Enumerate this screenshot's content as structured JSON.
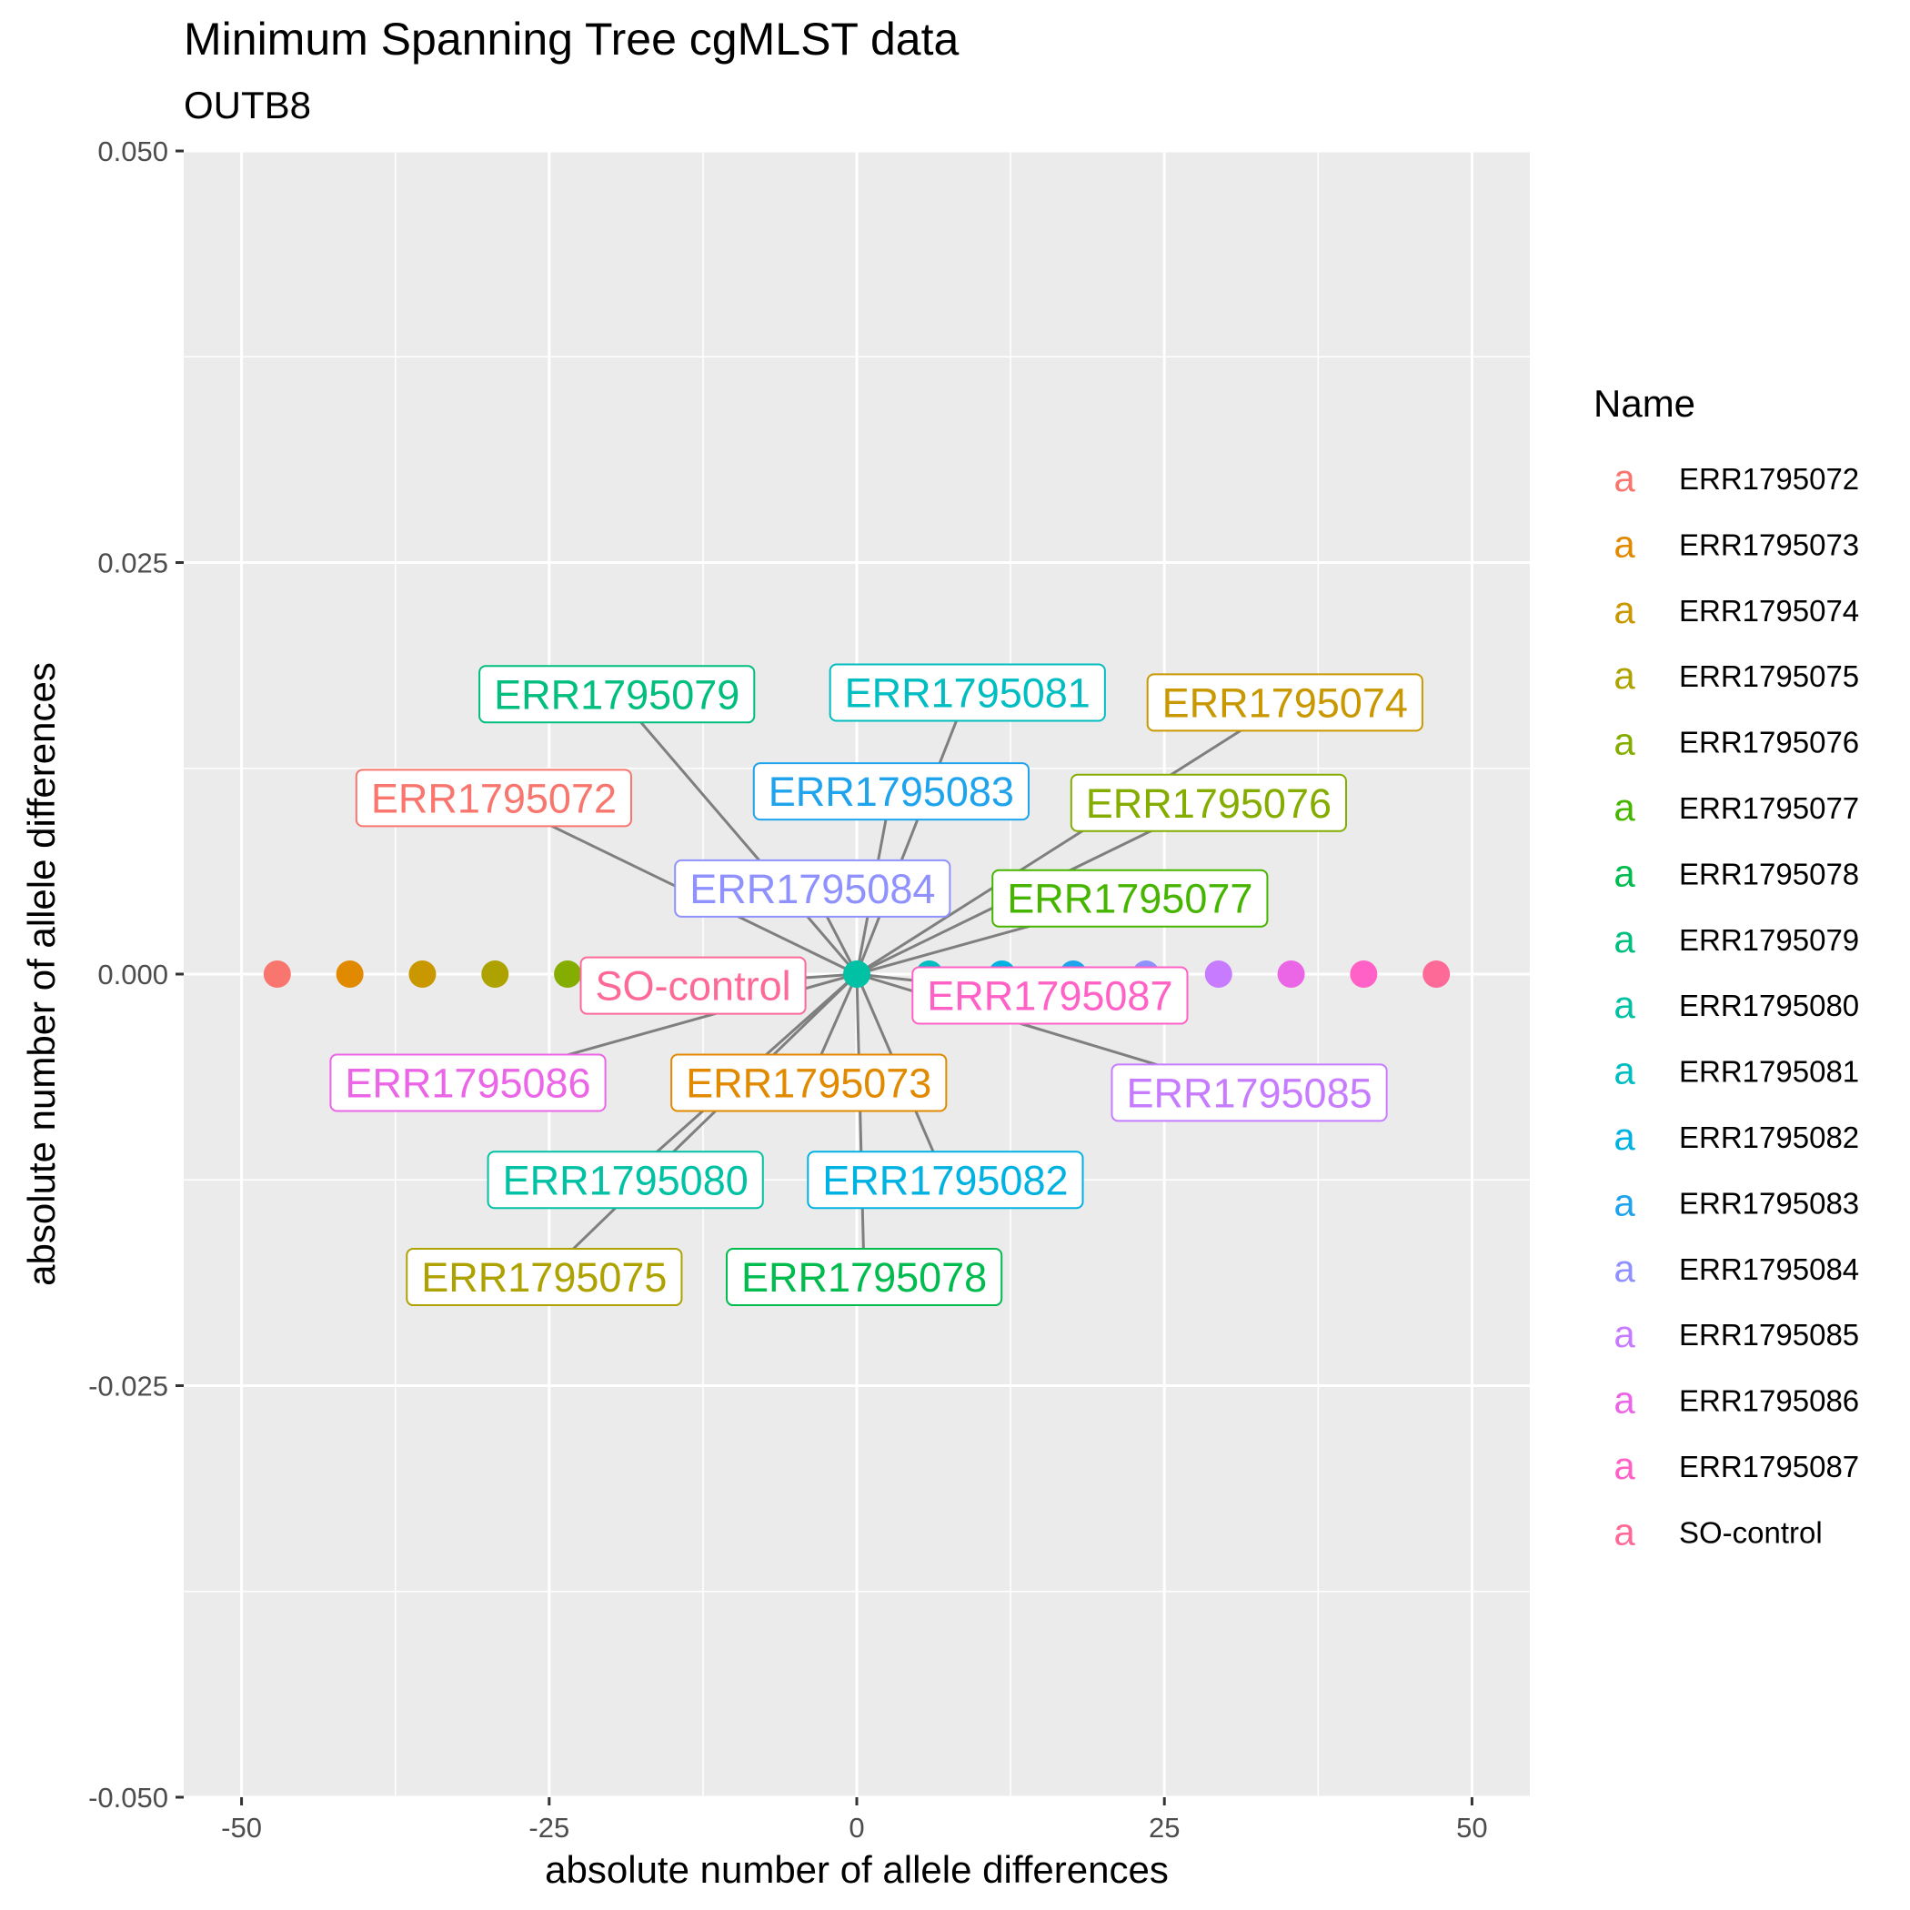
{
  "chart_data": {
    "type": "scatter",
    "title": "Minimum Spanning Tree cgMLST data",
    "subtitle": "OUTB8",
    "xlabel": "absolute number of allele differences",
    "ylabel": "absolute number of allele differences",
    "xlim": [
      -54.7,
      54.7
    ],
    "ylim": [
      -0.05,
      0.05
    ],
    "xticks": [
      -50,
      -25,
      0,
      25,
      50
    ],
    "xtick_labels": [
      "-50",
      "-25",
      "0",
      "25",
      "50"
    ],
    "yticks": [
      -0.05,
      -0.025,
      0.0,
      0.025,
      0.05
    ],
    "ytick_labels": [
      "-0.050",
      "-0.025",
      "0.000",
      "0.025",
      "0.050"
    ],
    "grid": true,
    "legend": {
      "title": "Name",
      "placement": "right",
      "key_glyph": "a"
    },
    "points": [
      {
        "name": "ERR1795072",
        "x": -47.1,
        "y": 0,
        "color": "#F8766D"
      },
      {
        "name": "ERR1795073",
        "x": -41.2,
        "y": 0,
        "color": "#E18A00"
      },
      {
        "name": "ERR1795074",
        "x": -35.3,
        "y": 0,
        "color": "#C99800"
      },
      {
        "name": "ERR1795075",
        "x": -29.4,
        "y": 0,
        "color": "#ADA200"
      },
      {
        "name": "ERR1795076",
        "x": -23.5,
        "y": 0,
        "color": "#85AD00"
      },
      {
        "name": "ERR1795077",
        "x": -17.6,
        "y": 0,
        "color": "#45B500"
      },
      {
        "name": "ERR1795078",
        "x": -11.8,
        "y": 0,
        "color": "#00BB4E"
      },
      {
        "name": "ERR1795079",
        "x": -5.9,
        "y": 0,
        "color": "#00BE7D"
      },
      {
        "name": "ERR1795080",
        "x": 0,
        "y": 0,
        "color": "#00C1A3"
      },
      {
        "name": "ERR1795081",
        "x": 5.9,
        "y": 0,
        "color": "#00BDC2"
      },
      {
        "name": "ERR1795082",
        "x": 11.8,
        "y": 0,
        "color": "#00B2E1"
      },
      {
        "name": "ERR1795083",
        "x": 17.6,
        "y": 0,
        "color": "#1FA3EC"
      },
      {
        "name": "ERR1795084",
        "x": 23.5,
        "y": 0,
        "color": "#8F91FF"
      },
      {
        "name": "ERR1795085",
        "x": 29.4,
        "y": 0,
        "color": "#C77CFF"
      },
      {
        "name": "ERR1795086",
        "x": 35.3,
        "y": 0,
        "color": "#EB65E7"
      },
      {
        "name": "ERR1795087",
        "x": 41.2,
        "y": 0,
        "color": "#FF61C6"
      },
      {
        "name": "SO-control",
        "x": 47.1,
        "y": 0,
        "color": "#FE6A98"
      }
    ],
    "hub": {
      "name": "ERR1795080",
      "x": 0,
      "y": 0
    },
    "labels": [
      {
        "name": "ERR1795072",
        "x": -29.5,
        "y": 0.0107,
        "color": "#F8766D"
      },
      {
        "name": "ERR1795073",
        "x": -3.9,
        "y": -0.0066,
        "color": "#E18A00"
      },
      {
        "name": "ERR1795074",
        "x": 34.8,
        "y": 0.0165,
        "color": "#C99800"
      },
      {
        "name": "ERR1795075",
        "x": -25.4,
        "y": -0.0184,
        "color": "#ADA200"
      },
      {
        "name": "ERR1795076",
        "x": 28.6,
        "y": 0.0104,
        "color": "#85AD00"
      },
      {
        "name": "ERR1795077",
        "x": 22.2,
        "y": 0.0046,
        "color": "#45B500"
      },
      {
        "name": "ERR1795078",
        "x": 0.6,
        "y": -0.0184,
        "color": "#00BB4E"
      },
      {
        "name": "ERR1795079",
        "x": -19.5,
        "y": 0.017,
        "color": "#00BE7D"
      },
      {
        "name": "ERR1795080",
        "x": -18.8,
        "y": -0.0125,
        "color": "#00C1A3"
      },
      {
        "name": "ERR1795081",
        "x": 9.0,
        "y": 0.0171,
        "color": "#00BDC2"
      },
      {
        "name": "ERR1795082",
        "x": 7.2,
        "y": -0.0125,
        "color": "#00B2E1"
      },
      {
        "name": "ERR1795083",
        "x": 2.8,
        "y": 0.0111,
        "color": "#1FA3EC"
      },
      {
        "name": "ERR1795084",
        "x": -3.6,
        "y": 0.0052,
        "color": "#8F91FF"
      },
      {
        "name": "ERR1795085",
        "x": 31.9,
        "y": -0.0072,
        "color": "#C77CFF"
      },
      {
        "name": "ERR1795086",
        "x": -31.6,
        "y": -0.0066,
        "color": "#EB65E7"
      },
      {
        "name": "ERR1795087",
        "x": 15.7,
        "y": -0.0013,
        "color": "#FF61C6"
      },
      {
        "name": "SO-control",
        "x": -13.3,
        "y": -0.0007,
        "color": "#FE6A98"
      }
    ]
  }
}
